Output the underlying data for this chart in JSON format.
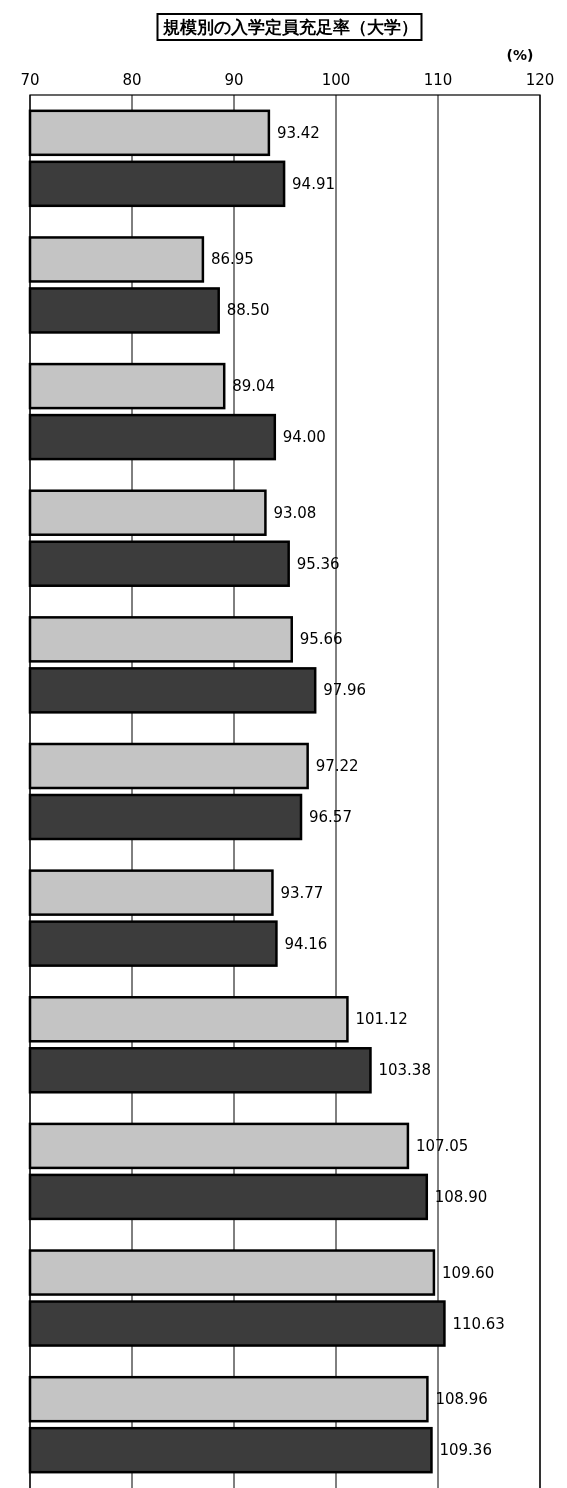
{
  "chart_data": {
    "type": "bar",
    "orientation": "horizontal",
    "title": "規模別の入学定員充足率（大学）",
    "annotations": [
      "(%)"
    ],
    "categories": [
      null,
      null,
      null,
      null,
      null,
      null,
      null,
      null,
      null,
      null,
      null
    ],
    "series": [
      {
        "color": "#c4c4c4",
        "values": [
          93.42,
          86.95,
          89.04,
          93.08,
          95.66,
          97.22,
          93.77,
          101.12,
          107.05,
          109.6,
          108.96
        ],
        "value_labels": [
          "93.42",
          "86.95",
          "89.04",
          "93.08",
          "95.66",
          "97.22",
          "93.77",
          "101.12",
          "107.05",
          "109.60",
          "108.96"
        ]
      },
      {
        "color": "#3c3c3c",
        "values": [
          94.91,
          88.5,
          94.0,
          95.36,
          97.96,
          96.57,
          94.16,
          103.38,
          108.9,
          110.63,
          109.36
        ],
        "value_labels": [
          "94.91",
          "88.50",
          "94.00",
          "95.36",
          "97.96",
          "96.57",
          "94.16",
          "103.38",
          "108.90",
          "110.63",
          "109.36"
        ]
      }
    ],
    "xlim": [
      70,
      120
    ],
    "xticks": [
      70,
      80,
      90,
      100,
      110,
      120
    ],
    "grid": "x"
  }
}
